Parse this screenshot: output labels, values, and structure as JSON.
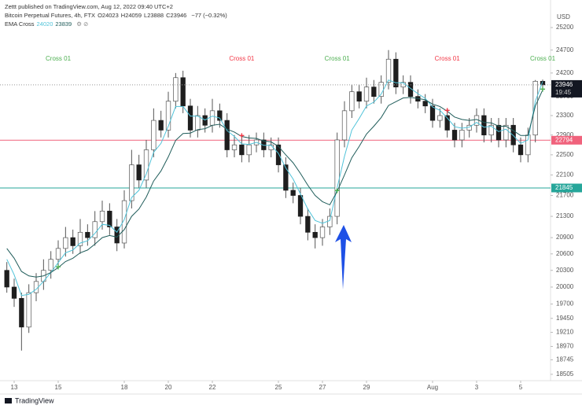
{
  "chart_data": {
    "type": "candlestick",
    "publisher": "Zettt published on TradingView.com, Aug 12, 2022 09:40 UTC+2",
    "title": "Bitcoin Perpetual Futures, 4h, FTX",
    "ohlc_legend": [
      {
        "label": "O",
        "value": 24023
      },
      {
        "label": "H",
        "value": 24059
      },
      {
        "label": "L",
        "value": 23888
      },
      {
        "label": "C",
        "value": 23946
      }
    ],
    "change": {
      "value": -77,
      "label": "−77 (−0.32%)"
    },
    "indicator": "EMA Cross",
    "currency": "USD",
    "brand": "TradingView",
    "countdown": "19:45",
    "log_scale": true,
    "up_color": "#ffffff",
    "down_color": "#1e1e1e",
    "wick_color": "#555555",
    "ylim": [
      18400,
      25610
    ],
    "yticks": [
      18505,
      18745,
      18970,
      19210,
      19450,
      19700,
      20000,
      20300,
      20600,
      20900,
      21300,
      21700,
      22100,
      22500,
      22900,
      23300,
      23700,
      24200,
      24700,
      25200
    ],
    "xlim": [
      -0.93,
      74.07
    ],
    "xticks": [
      {
        "value": 1,
        "label": "13"
      },
      {
        "value": 7,
        "label": "15"
      },
      {
        "value": 16,
        "label": "18"
      },
      {
        "value": 22,
        "label": "20"
      },
      {
        "value": 28,
        "label": "22"
      },
      {
        "value": 37,
        "label": "25"
      },
      {
        "value": 43,
        "label": "27"
      },
      {
        "value": 49,
        "label": "29"
      },
      {
        "value": 58,
        "label": "Aug"
      },
      {
        "value": 64,
        "label": "3"
      },
      {
        "value": 70,
        "label": "5"
      }
    ],
    "ohlc": [
      [
        20300,
        20450,
        19900,
        20000
      ],
      [
        20000,
        20150,
        19650,
        19800
      ],
      [
        19800,
        19900,
        18900,
        19300
      ],
      [
        19300,
        20050,
        19200,
        19900
      ],
      [
        19900,
        20250,
        19750,
        20100
      ],
      [
        20100,
        20500,
        19950,
        20300
      ],
      [
        20300,
        20650,
        20150,
        20500
      ],
      [
        20500,
        20850,
        20350,
        20700
      ],
      [
        20700,
        21100,
        20550,
        20900
      ],
      [
        20900,
        21050,
        20600,
        20750
      ],
      [
        20750,
        21250,
        20600,
        21000
      ],
      [
        21000,
        21150,
        20750,
        20900
      ],
      [
        20900,
        21400,
        20750,
        21200
      ],
      [
        21200,
        21600,
        21050,
        21400
      ],
      [
        21400,
        21550,
        20950,
        21100
      ],
      [
        21100,
        21250,
        20650,
        20800
      ],
      [
        20800,
        21800,
        20700,
        21600
      ],
      [
        21600,
        22600,
        21450,
        22300
      ],
      [
        22300,
        22500,
        21850,
        22000
      ],
      [
        22000,
        22800,
        21850,
        22600
      ],
      [
        22600,
        23450,
        22450,
        23200
      ],
      [
        23200,
        23400,
        22850,
        23000
      ],
      [
        23000,
        23800,
        22850,
        23600
      ],
      [
        23600,
        24200,
        23450,
        24100
      ],
      [
        24100,
        24250,
        23350,
        23500
      ],
      [
        23500,
        23650,
        22850,
        23000
      ],
      [
        23000,
        23500,
        22850,
        23300
      ],
      [
        23300,
        23450,
        22950,
        23100
      ],
      [
        23100,
        23650,
        22950,
        23400
      ],
      [
        23400,
        23550,
        23050,
        23200
      ],
      [
        23200,
        23350,
        22450,
        22600
      ],
      [
        22600,
        22900,
        22450,
        22700
      ],
      [
        22700,
        22850,
        22350,
        22500
      ],
      [
        22500,
        22900,
        22350,
        22700
      ],
      [
        22700,
        22950,
        22550,
        22800
      ],
      [
        22800,
        22950,
        22450,
        22600
      ],
      [
        22600,
        22850,
        22450,
        22700
      ],
      [
        22700,
        22850,
        22150,
        22300
      ],
      [
        22300,
        22450,
        21650,
        21800
      ],
      [
        21800,
        21950,
        21550,
        21700
      ],
      [
        21700,
        21850,
        21150,
        21300
      ],
      [
        21300,
        21450,
        20850,
        21000
      ],
      [
        21000,
        21150,
        20700,
        20900
      ],
      [
        20900,
        21250,
        20750,
        21100
      ],
      [
        21100,
        21450,
        20950,
        21300
      ],
      [
        21300,
        22950,
        21150,
        22800
      ],
      [
        22800,
        23600,
        22650,
        23400
      ],
      [
        23400,
        23950,
        23250,
        23800
      ],
      [
        23800,
        23950,
        23450,
        23600
      ],
      [
        23600,
        24100,
        23450,
        23900
      ],
      [
        23900,
        24050,
        23550,
        23700
      ],
      [
        23700,
        24150,
        23550,
        24000
      ],
      [
        24000,
        24700,
        23850,
        24500
      ],
      [
        24500,
        24650,
        23750,
        23900
      ],
      [
        23900,
        24150,
        23750,
        24000
      ],
      [
        24000,
        24150,
        23550,
        23700
      ],
      [
        23700,
        23850,
        23450,
        23600
      ],
      [
        23600,
        23750,
        23350,
        23500
      ],
      [
        23500,
        23650,
        23050,
        23200
      ],
      [
        23200,
        23450,
        23050,
        23300
      ],
      [
        23300,
        23450,
        22850,
        23000
      ],
      [
        23000,
        23150,
        22650,
        22800
      ],
      [
        22800,
        23150,
        22650,
        23000
      ],
      [
        23000,
        23250,
        22850,
        23100
      ],
      [
        23100,
        23450,
        22950,
        23300
      ],
      [
        23300,
        23450,
        22750,
        22900
      ],
      [
        22900,
        23250,
        22750,
        23100
      ],
      [
        23100,
        23250,
        22650,
        22800
      ],
      [
        22800,
        23250,
        22650,
        23100
      ],
      [
        23100,
        23250,
        22550,
        22700
      ],
      [
        22700,
        22850,
        22350,
        22500
      ],
      [
        22500,
        23050,
        22350,
        22900
      ],
      [
        22900,
        24050,
        22750,
        24023
      ],
      [
        24023,
        24059,
        23888,
        23946
      ]
    ],
    "series": [
      {
        "name": "24020",
        "color": "#4fc3d9",
        "values": [
          20500,
          20220,
          19850,
          19870,
          19960,
          20100,
          20260,
          20440,
          20620,
          20670,
          20800,
          20840,
          20980,
          21150,
          21130,
          21000,
          21240,
          21660,
          21800,
          22120,
          22550,
          22730,
          23080,
          23490,
          23490,
          23290,
          23290,
          23210,
          23290,
          23250,
          22990,
          22870,
          22720,
          22710,
          22750,
          22690,
          22690,
          22530,
          22240,
          22020,
          21730,
          21440,
          21220,
          21170,
          21220,
          21850,
          22470,
          23000,
          23240,
          23500,
          23580,
          23750,
          24050,
          23990,
          23990,
          23870,
          23760,
          23660,
          23480,
          23410,
          23250,
          23070,
          23040,
          23060,
          23160,
          23060,
          23080,
          22970,
          23020,
          22890,
          22730,
          22800,
          23600,
          24020
        ]
      },
      {
        "name": "23839",
        "color": "#1f5c5a",
        "values": [
          20700,
          20520,
          20280,
          20200,
          20180,
          20200,
          20260,
          20350,
          20460,
          20520,
          20620,
          20670,
          20780,
          20900,
          20940,
          20910,
          21050,
          21300,
          21440,
          21670,
          21980,
          22180,
          22460,
          22790,
          22930,
          22940,
          23010,
          23030,
          23100,
          23120,
          23020,
          22960,
          22870,
          22840,
          22830,
          22780,
          22760,
          22670,
          22500,
          22340,
          22130,
          21900,
          21700,
          21580,
          21520,
          21780,
          22100,
          22440,
          22670,
          22920,
          23080,
          23260,
          23510,
          23590,
          23670,
          23680,
          23660,
          23630,
          23540,
          23490,
          23390,
          23270,
          23220,
          23200,
          23220,
          23160,
          23150,
          23080,
          23080,
          22990,
          22890,
          22890,
          23500,
          23839
        ]
      }
    ],
    "price_lines": [
      {
        "value": 22794,
        "color": "#f0627c"
      },
      {
        "value": 21845,
        "color": "#26a69a"
      }
    ],
    "annotations": [
      {
        "text": "Cross 01",
        "at": 7,
        "color": "#4caf50"
      },
      {
        "text": "Cross 01",
        "at": 32,
        "color": "#f23645"
      },
      {
        "text": "Cross 01",
        "at": 45,
        "color": "#4caf50"
      },
      {
        "text": "Cross 01",
        "at": 60,
        "color": "#f23645"
      },
      {
        "text": "Cross 01",
        "at": 73,
        "color": "#4caf50"
      }
    ]
  }
}
